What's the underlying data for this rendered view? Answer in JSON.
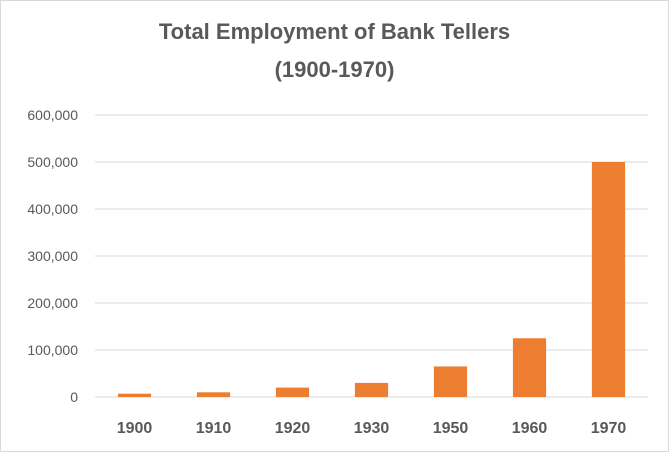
{
  "chart_data": {
    "type": "bar",
    "title": "Total Employment of Bank Tellers",
    "subtitle": "(1900-1970)",
    "categories": [
      "1900",
      "1910",
      "1920",
      "1930",
      "1950",
      "1960",
      "1970"
    ],
    "values": [
      7000,
      10000,
      20000,
      30000,
      65000,
      125000,
      500000
    ],
    "xlabel": "",
    "ylabel": "",
    "ylim": [
      0,
      600000
    ],
    "yticks": [
      0,
      100000,
      200000,
      300000,
      400000,
      500000,
      600000
    ],
    "ytick_labels": [
      "0",
      "100,000",
      "200,000",
      "300,000",
      "400,000",
      "500,000",
      "600,000"
    ],
    "bar_color": "#ED7D31",
    "grid": true,
    "legend": "none"
  }
}
